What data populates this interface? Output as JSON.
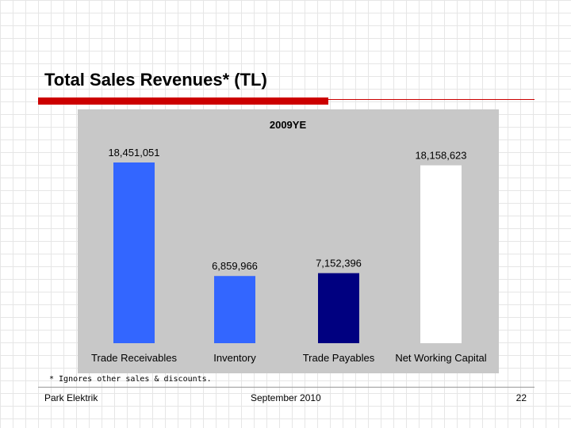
{
  "slide": {
    "title": "Total Sales Revenues* (TL)",
    "footnote": "* Ignores other sales & discounts.",
    "footer_left": "Park Elektrik",
    "footer_center": "September 2010",
    "page_number": "22"
  },
  "colors": {
    "accent": "#cc0000",
    "panel": "#c8c8c8",
    "bar_blue": "#3366ff",
    "bar_navy": "#000080",
    "bar_white": "#ffffff"
  },
  "chart_data": {
    "type": "bar",
    "title": "2009YE",
    "categories": [
      "Trade Receivables",
      "Inventory",
      "Trade Payables",
      "Net Working Capital"
    ],
    "values": [
      18451051,
      6859966,
      7152396,
      18158623
    ],
    "value_labels": [
      "18,451,051",
      "6,859,966",
      "7,152,396",
      "18,158,623"
    ],
    "bar_colors": [
      "#3366ff",
      "#3366ff",
      "#000080",
      "#ffffff"
    ],
    "xlabel": "",
    "ylabel": "",
    "ylim": [
      0,
      18451051
    ],
    "grid": false
  }
}
